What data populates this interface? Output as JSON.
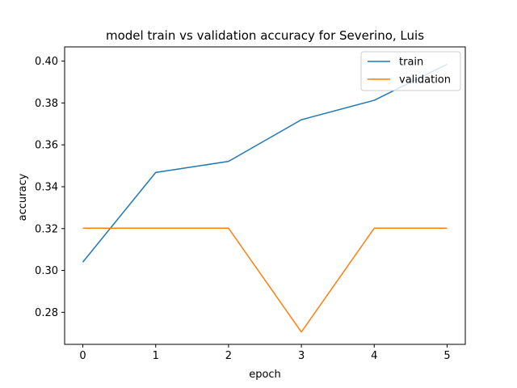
{
  "chart_data": {
    "type": "line",
    "title": "model train vs validation accuracy for Severino, Luis",
    "xlabel": "epoch",
    "ylabel": "accuracy",
    "x": [
      0,
      1,
      2,
      3,
      4,
      5
    ],
    "xlim": [
      -0.25,
      5.25
    ],
    "ylim": [
      0.2647,
      0.4068
    ],
    "xticks": [
      0,
      1,
      2,
      3,
      4,
      5
    ],
    "yticks": [
      0.28,
      0.3,
      0.32,
      0.34,
      0.36,
      0.38,
      0.4
    ],
    "ytick_labels": [
      "0.28",
      "0.30",
      "0.32",
      "0.34",
      "0.36",
      "0.38",
      "0.40"
    ],
    "grid": false,
    "legend_position": "top-right",
    "series": [
      {
        "name": "train",
        "color": "#1f77b4",
        "values": [
          0.304,
          0.3468,
          0.3521,
          0.372,
          0.3813,
          0.3985
        ]
      },
      {
        "name": "validation",
        "color": "#ff7f0e",
        "values": [
          0.3202,
          0.3202,
          0.3202,
          0.2706,
          0.3202,
          0.3202
        ]
      }
    ]
  }
}
